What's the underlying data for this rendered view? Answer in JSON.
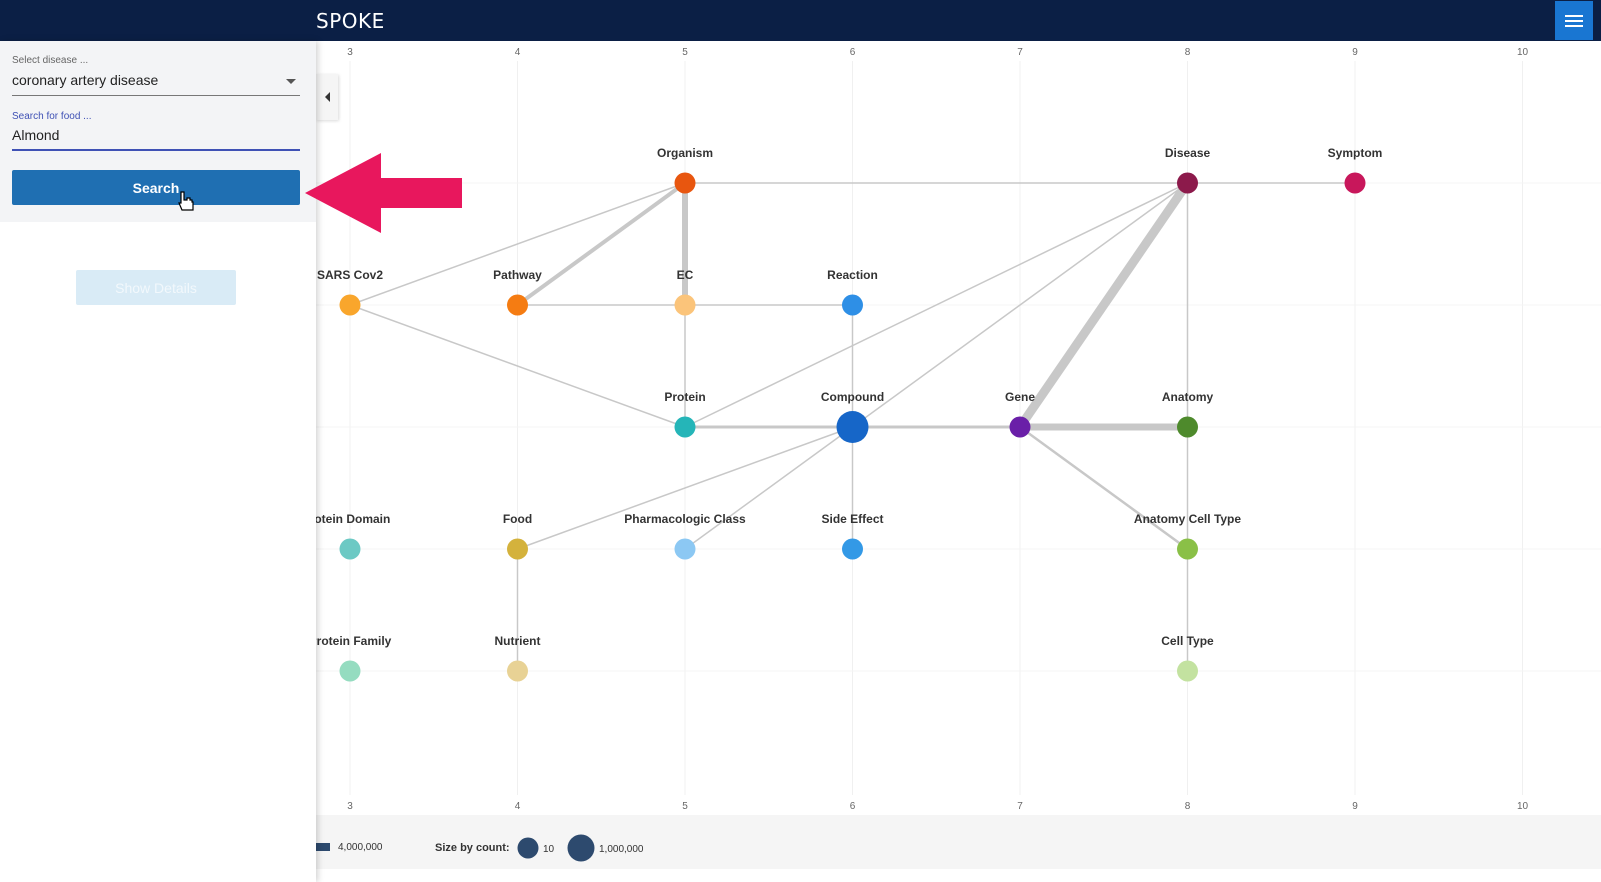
{
  "header": {
    "logo_text": "SPOKE",
    "menu_icon": "hamburger-icon",
    "background_color": "#0b1f45",
    "menu_color": "#1976d2"
  },
  "sidebar": {
    "disease_label": "Select disease ...",
    "disease_value": "coronary artery disease",
    "food_label": "Search for food ...",
    "food_value": "Almond",
    "search_label": "Search",
    "details_label": "Show Details",
    "search_color": "#1f6fb2"
  },
  "axis": {
    "ticks": [
      "3",
      "4",
      "5",
      "6",
      "7",
      "8",
      "9",
      "10"
    ]
  },
  "graph": {
    "nodes": [
      {
        "id": "organism",
        "label": "Organism",
        "col": 5,
        "row": 1,
        "color": "#e8560f",
        "size": "m"
      },
      {
        "id": "disease",
        "label": "Disease",
        "col": 8,
        "row": 1,
        "color": "#8c1a4b",
        "size": "m"
      },
      {
        "id": "symptom",
        "label": "Symptom",
        "col": 9,
        "row": 1,
        "color": "#c8175b",
        "size": "m"
      },
      {
        "id": "sars",
        "label": "SARS Cov2",
        "col": 3,
        "row": 2,
        "color": "#f9a62c",
        "size": "m"
      },
      {
        "id": "pathway",
        "label": "Pathway",
        "col": 4,
        "row": 2,
        "color": "#f57c12",
        "size": "m"
      },
      {
        "id": "ec",
        "label": "EC",
        "col": 5,
        "row": 2,
        "color": "#fbc47a",
        "size": "m"
      },
      {
        "id": "reaction",
        "label": "Reaction",
        "col": 6,
        "row": 2,
        "color": "#2e8fe6",
        "size": "m"
      },
      {
        "id": "protein",
        "label": "Protein",
        "col": 5,
        "row": 3,
        "color": "#25b5b8",
        "size": "m"
      },
      {
        "id": "compound",
        "label": "Compound",
        "col": 6,
        "row": 3,
        "color": "#1666c8",
        "size": "l"
      },
      {
        "id": "gene",
        "label": "Gene",
        "col": 7,
        "row": 3,
        "color": "#6a1fa8",
        "size": "m"
      },
      {
        "id": "anatomy",
        "label": "Anatomy",
        "col": 8,
        "row": 3,
        "color": "#4e8a2c",
        "size": "m"
      },
      {
        "id": "pdomain",
        "label": "rotein Domain",
        "col": 3,
        "row": 4,
        "color": "#6cc9c4",
        "size": "m"
      },
      {
        "id": "food",
        "label": "Food",
        "col": 4,
        "row": 4,
        "color": "#d4b23c",
        "size": "m"
      },
      {
        "id": "pharm",
        "label": "Pharmacologic Class",
        "col": 5,
        "row": 4,
        "color": "#8cc8f3",
        "size": "m"
      },
      {
        "id": "side",
        "label": "Side Effect",
        "col": 6,
        "row": 4,
        "color": "#3399e6",
        "size": "m"
      },
      {
        "id": "acell",
        "label": "Anatomy Cell Type",
        "col": 8,
        "row": 4,
        "color": "#8ac047",
        "size": "m"
      },
      {
        "id": "pfamily",
        "label": "Protein Family",
        "col": 3,
        "row": 5,
        "color": "#95dcc0",
        "size": "m"
      },
      {
        "id": "nutrient",
        "label": "Nutrient",
        "col": 4,
        "row": 5,
        "color": "#e8d295",
        "size": "m"
      },
      {
        "id": "celltype",
        "label": "Cell Type",
        "col": 8,
        "row": 5,
        "color": "#c3e2a0",
        "size": "m"
      }
    ],
    "edges": [
      {
        "from": "organism",
        "to": "disease",
        "weight": 1.5
      },
      {
        "from": "disease",
        "to": "symptom",
        "weight": 1.5
      },
      {
        "from": "organism",
        "to": "pathway",
        "weight": 4
      },
      {
        "from": "organism",
        "to": "ec",
        "weight": 6
      },
      {
        "from": "organism",
        "to": "sars",
        "weight": 1.5
      },
      {
        "from": "pathway",
        "to": "ec",
        "weight": 1.5
      },
      {
        "from": "ec",
        "to": "reaction",
        "weight": 1.5
      },
      {
        "from": "sars",
        "to": "protein",
        "weight": 1.5
      },
      {
        "from": "ec",
        "to": "protein",
        "weight": 1.5
      },
      {
        "from": "reaction",
        "to": "compound",
        "weight": 1.5
      },
      {
        "from": "protein",
        "to": "compound",
        "weight": 3
      },
      {
        "from": "compound",
        "to": "gene",
        "weight": 3
      },
      {
        "from": "gene",
        "to": "anatomy",
        "weight": 7
      },
      {
        "from": "disease",
        "to": "gene",
        "weight": 9
      },
      {
        "from": "disease",
        "to": "compound",
        "weight": 1.5
      },
      {
        "from": "disease",
        "to": "protein",
        "weight": 1.5
      },
      {
        "from": "disease",
        "to": "anatomy",
        "weight": 1.5
      },
      {
        "from": "compound",
        "to": "side",
        "weight": 1.5
      },
      {
        "from": "compound",
        "to": "pharm",
        "weight": 1.5
      },
      {
        "from": "compound",
        "to": "food",
        "weight": 1.5
      },
      {
        "from": "food",
        "to": "nutrient",
        "weight": 1.5
      },
      {
        "from": "gene",
        "to": "acell",
        "weight": 2.5
      },
      {
        "from": "anatomy",
        "to": "acell",
        "weight": 1.5
      },
      {
        "from": "acell",
        "to": "celltype",
        "weight": 1.5
      }
    ],
    "edge_color": "#c8c8c8"
  },
  "legend": {
    "edge_value": "4,000,000",
    "size_label": "Size by count:",
    "small_value": "10",
    "large_value": "1,000,000",
    "bubble_color": "#2d4a6e"
  }
}
